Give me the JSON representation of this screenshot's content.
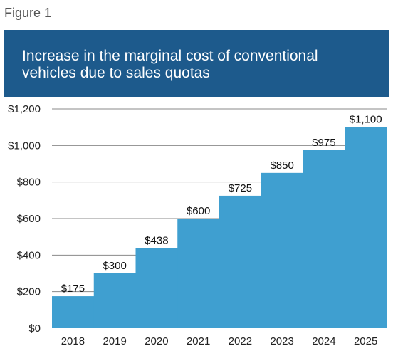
{
  "figure_label": "Figure 1",
  "colors": {
    "banner": "#1d5a8c",
    "bar": "#3f9fd0",
    "grid": "#8a8a8a"
  },
  "chart_data": {
    "type": "bar",
    "title": "Increase in the marginal cost of conventional vehicles due to sales quotas",
    "categories": [
      "2018",
      "2019",
      "2020",
      "2021",
      "2022",
      "2023",
      "2024",
      "2025"
    ],
    "values": [
      175,
      300,
      438,
      600,
      725,
      850,
      975,
      1100
    ],
    "data_labels": [
      "$175",
      "$300",
      "$438",
      "$600",
      "$725",
      "$850",
      "$975",
      "$1,100"
    ],
    "ylim": [
      0,
      1200
    ],
    "yticks": [
      0,
      200,
      400,
      600,
      800,
      1000,
      1200
    ],
    "ytick_labels": [
      "$0",
      "$200",
      "$400",
      "$600",
      "$800",
      "$1,000",
      "$1,200"
    ],
    "grid": true,
    "legend": "none"
  }
}
